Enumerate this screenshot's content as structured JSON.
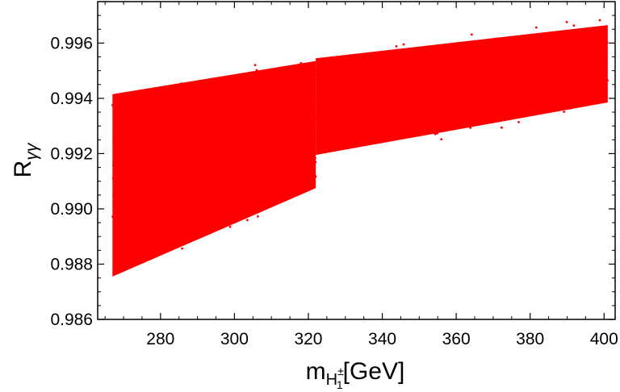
{
  "chart_data": {
    "type": "scatter",
    "xlabel": {
      "main": "m",
      "sub_base": "H",
      "sub_sup": "±",
      "sub_sub": "1",
      "unit": "[GeV]"
    },
    "ylabel": {
      "main": "R",
      "sub": "γγ"
    },
    "xlim": [
      263,
      403
    ],
    "ylim": [
      0.986,
      0.9975
    ],
    "xticks": [
      280,
      300,
      320,
      340,
      360,
      380,
      400
    ],
    "xtick_labels": [
      "280",
      "300",
      "320",
      "340",
      "360",
      "380",
      "400"
    ],
    "yticks": [
      0.986,
      0.988,
      0.99,
      0.992,
      0.994,
      0.996
    ],
    "ytick_labels": [
      "0.986",
      "0.988",
      "0.990",
      "0.992",
      "0.994",
      "0.996"
    ],
    "grid": false,
    "marker_color": "#ff0000",
    "regions": [
      {
        "name": "",
        "x": [
          267,
          322
        ],
        "y_low": [
          0.9873,
          0.9905
        ],
        "y_high": [
          0.9944,
          0.9956
        ]
      },
      {
        "name": "",
        "x": [
          322,
          401
        ],
        "y_low": [
          0.9917,
          0.9936
        ],
        "y_high": [
          0.9957,
          0.9969
        ]
      }
    ]
  }
}
